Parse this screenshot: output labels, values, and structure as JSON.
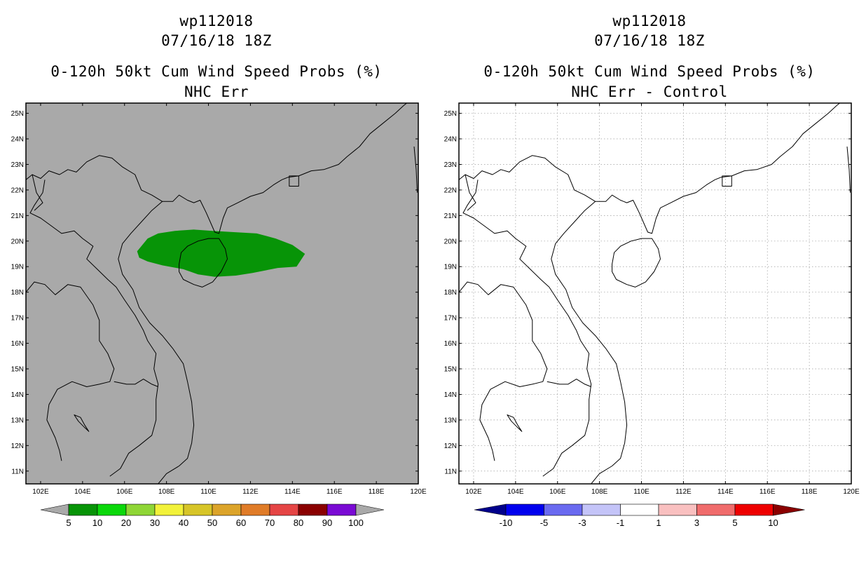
{
  "panels": [
    {
      "storm_id": "wp112018",
      "datetime": "07/16/18 18Z",
      "product": "0-120h 50kt Cum Wind Speed Probs (%)",
      "subtitle": "NHC Err",
      "background": "#a9a9a9",
      "colorbar": {
        "labels": [
          "5",
          "10",
          "20",
          "30",
          "40",
          "50",
          "60",
          "70",
          "80",
          "90",
          "100"
        ],
        "colors": [
          "#a9a9a9",
          "#079407",
          "#0ad80a",
          "#8fd636",
          "#f2f23a",
          "#d7c528",
          "#dca42a",
          "#e07c28",
          "#e54545",
          "#8a0000",
          "#7a0ad4",
          "#a9a9a9"
        ]
      }
    },
    {
      "storm_id": "wp112018",
      "datetime": "07/16/18 18Z",
      "product": "0-120h 50kt Cum Wind Speed Probs (%)",
      "subtitle": "NHC Err - Control",
      "background": "#ffffff",
      "colorbar": {
        "labels": [
          "-10",
          "-5",
          "-3",
          "-1",
          "1",
          "3",
          "5",
          "10"
        ],
        "colors": [
          "#00008b",
          "#0000ee",
          "#6a6af0",
          "#c4c4f8",
          "#ffffff",
          "#f9c0c0",
          "#f06c6c",
          "#ee0000",
          "#8b0000"
        ]
      }
    }
  ],
  "axes": {
    "lon_labels": [
      "102E",
      "104E",
      "106E",
      "108E",
      "110E",
      "112E",
      "114E",
      "116E",
      "118E",
      "120E"
    ],
    "lat_labels": [
      "11N",
      "12N",
      "13N",
      "14N",
      "15N",
      "16N",
      "17N",
      "18N",
      "19N",
      "20N",
      "21N",
      "22N",
      "23N",
      "24N",
      "25N"
    ],
    "lon_range": [
      101.3,
      120.0
    ],
    "lat_range": [
      10.5,
      25.4
    ]
  },
  "probability_area": {
    "threshold_percent": 5,
    "color": "#079407"
  }
}
